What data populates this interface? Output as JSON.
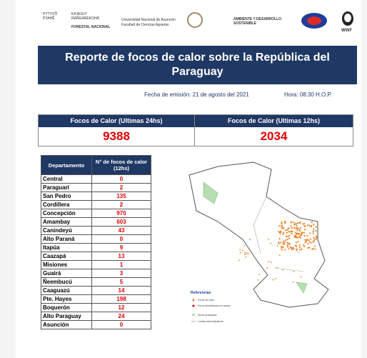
{
  "header": {
    "logos": [
      "PYTYVÕ PYAHẼ",
      "KA'AGUY RAÑGAREKOHÁ",
      "FORESTAL NACIONAL",
      "Universidad Nacional de Asunción",
      "Facultad de Ciencias Agrarias",
      "AMBIENTE Y DESARROLLO SOSTENIBLE",
      "WWF"
    ]
  },
  "title": "Reporte de focos de calor sobre la República del Paraguay",
  "issue_date": "Fecha de emisión: 21 de agosto del 2021",
  "issue_time": "Hora: 08:30  H.O.P.",
  "counters": [
    {
      "label": "Focos de Calor (Ultimas 24hs)",
      "value": "9388"
    },
    {
      "label": "Focos de Calor (Ultimas 12hs)",
      "value": "2034"
    }
  ],
  "table": {
    "columns": [
      "Departamento",
      "N° de focos de calor (12hs)"
    ],
    "rows": [
      [
        "Central",
        "0"
      ],
      [
        "Paraguarí",
        "2"
      ],
      [
        "San Pedro",
        "135"
      ],
      [
        "Cordillera",
        "2"
      ],
      [
        "Concepción",
        "970"
      ],
      [
        "Amambay",
        "603"
      ],
      [
        "Canindeyú",
        "43"
      ],
      [
        "Alto Paraná",
        "0"
      ],
      [
        "Itapúa",
        "9"
      ],
      [
        "Caazapá",
        "13"
      ],
      [
        "Misiones",
        "1"
      ],
      [
        "Guairá",
        "3"
      ],
      [
        "Ñeembucú",
        "5"
      ],
      [
        "Caaguazú",
        "14"
      ],
      [
        "Pte. Hayes",
        "198"
      ],
      [
        "Boquerón",
        "12"
      ],
      [
        "Alto Paraguay",
        "24"
      ],
      [
        "Asunción",
        "0"
      ]
    ]
  },
  "map_legend": {
    "title": "Referencias",
    "items": [
      "Focos de calor",
      "Focos identificados en campo",
      "Áreas protegidas",
      "Límites administrativos"
    ]
  }
}
